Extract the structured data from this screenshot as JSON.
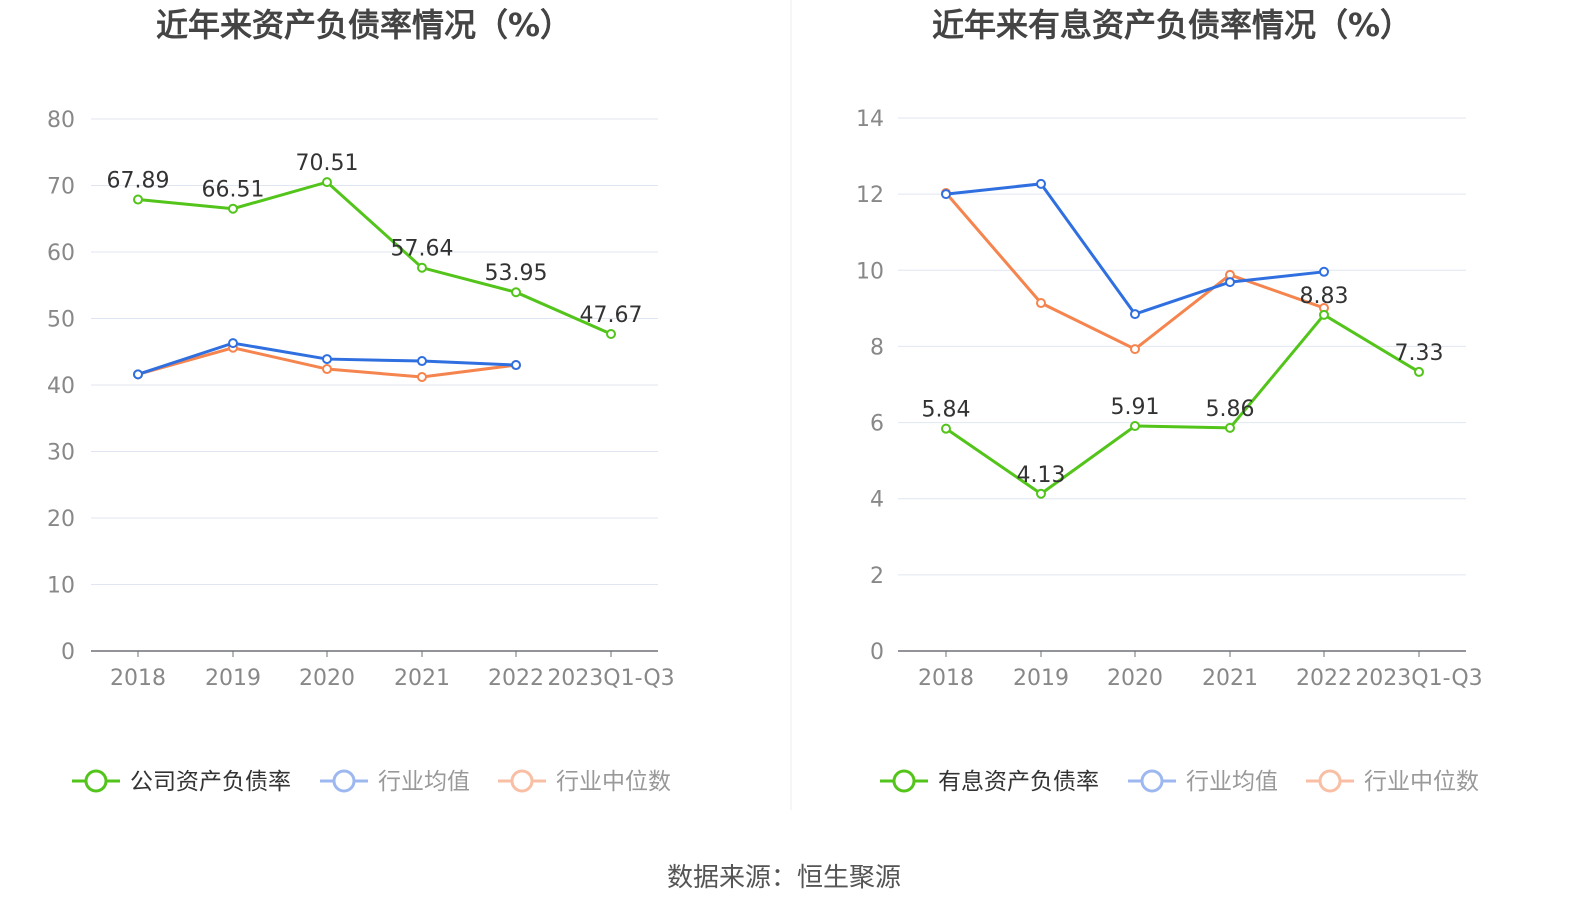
{
  "source": "数据来源：恒生聚源",
  "chart_data": [
    {
      "type": "line",
      "title": "近年来资产负债率情况（%）",
      "categories": [
        "2018",
        "2019",
        "2020",
        "2021",
        "2022",
        "2023Q1-Q3"
      ],
      "ylim": [
        0,
        80
      ],
      "yticks": [
        0,
        10,
        20,
        30,
        40,
        50,
        60,
        70,
        80
      ],
      "grid": true,
      "legend_position": "bottom",
      "series": [
        {
          "name": "公司资产负债率",
          "color": "#52c41a",
          "values": [
            67.89,
            66.51,
            70.51,
            57.64,
            53.95,
            47.67
          ],
          "labels": [
            "67.89",
            "66.51",
            "70.51",
            "57.64",
            "53.95",
            "47.67"
          ]
        },
        {
          "name": "行业均值",
          "color": "#2f6fe0",
          "values": [
            41.6,
            46.3,
            43.9,
            43.6,
            43.0,
            null
          ]
        },
        {
          "name": "行业中位数",
          "color": "#f5844e",
          "values": [
            41.6,
            45.6,
            42.4,
            41.2,
            43.0,
            null
          ]
        }
      ]
    },
    {
      "type": "line",
      "title": "近年来有息资产负债率情况（%）",
      "categories": [
        "2018",
        "2019",
        "2020",
        "2021",
        "2022",
        "2023Q1-Q3"
      ],
      "ylim": [
        0,
        14
      ],
      "yticks": [
        0,
        2,
        4,
        6,
        8,
        10,
        12,
        14
      ],
      "grid": true,
      "legend_position": "bottom",
      "series": [
        {
          "name": "有息资产负债率",
          "color": "#52c41a",
          "values": [
            5.84,
            4.13,
            5.91,
            5.86,
            8.83,
            7.33
          ],
          "labels": [
            "5.84",
            "4.13",
            "5.91",
            "5.86",
            "8.83",
            "7.33"
          ]
        },
        {
          "name": "行业均值",
          "color": "#2f6fe0",
          "values": [
            12.0,
            12.27,
            8.85,
            9.69,
            9.96,
            null
          ]
        },
        {
          "name": "行业中位数",
          "color": "#f5844e",
          "values": [
            12.03,
            9.14,
            7.93,
            9.88,
            9.01,
            null
          ]
        }
      ]
    }
  ]
}
